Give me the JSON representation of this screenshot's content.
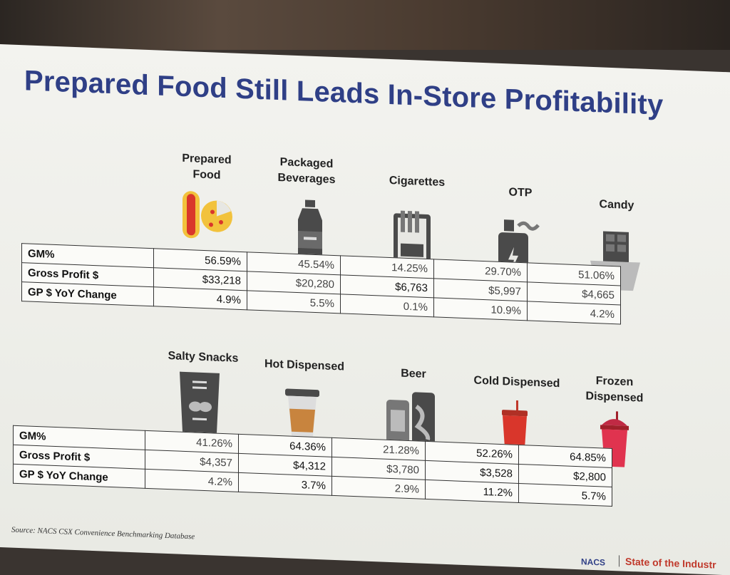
{
  "title": "Prepared Food Still Leads In-Store Profitability",
  "row_labels": [
    "GM%",
    "Gross Profit $",
    "GP $ YoY Change"
  ],
  "top": {
    "categories": [
      {
        "label_line1": "Prepared",
        "label_line2": "Food",
        "icon": "hotdog-pizza-icon",
        "gm": "56.59%",
        "gp": "$33,218",
        "yoy": "4.9%"
      },
      {
        "label_line1": "Packaged",
        "label_line2": "Beverages",
        "icon": "bottle-icon",
        "gm": "45.54%",
        "gp": "$20,280",
        "yoy": "5.5%"
      },
      {
        "label_line1": "Cigarettes",
        "label_line2": "",
        "icon": "cigarette-pack-icon",
        "gm": "14.25%",
        "gp": "$6,763",
        "yoy": "0.1%"
      },
      {
        "label_line1": "OTP",
        "label_line2": "",
        "icon": "vape-icon",
        "gm": "29.70%",
        "gp": "$5,997",
        "yoy": "10.9%"
      },
      {
        "label_line1": "Candy",
        "label_line2": "",
        "icon": "chocolate-bar-icon",
        "gm": "51.06%",
        "gp": "$4,665",
        "yoy": "4.2%"
      }
    ]
  },
  "bottom": {
    "categories": [
      {
        "label_line1": "Salty Snacks",
        "label_line2": "",
        "icon": "chip-bag-icon",
        "gm": "41.26%",
        "gp": "$4,357",
        "yoy": "4.2%"
      },
      {
        "label_line1": "Hot Dispensed",
        "label_line2": "",
        "icon": "coffee-cup-icon",
        "gm": "64.36%",
        "gp": "$4,312",
        "yoy": "3.7%"
      },
      {
        "label_line1": "Beer",
        "label_line2": "",
        "icon": "beer-cans-icon",
        "gm": "21.28%",
        "gp": "$3,780",
        "yoy": "2.9%"
      },
      {
        "label_line1": "Cold Dispensed",
        "label_line2": "",
        "icon": "soda-cup-icon",
        "gm": "52.26%",
        "gp": "$3,528",
        "yoy": "11.2%"
      },
      {
        "label_line1": "Frozen",
        "label_line2": "Dispensed",
        "icon": "frozen-cup-icon",
        "gm": "64.85%",
        "gp": "$2,800",
        "yoy": "5.7%"
      }
    ]
  },
  "source": "Source: NACS CSX Convenience Benchmarking Database",
  "footer": {
    "brand": "NACS",
    "section": "State of the Industr"
  },
  "colors": {
    "title": "#2f3f86",
    "icon_dark": "#4a4a4a",
    "icon_red": "#d9362b",
    "icon_yellow": "#f2c23c"
  }
}
